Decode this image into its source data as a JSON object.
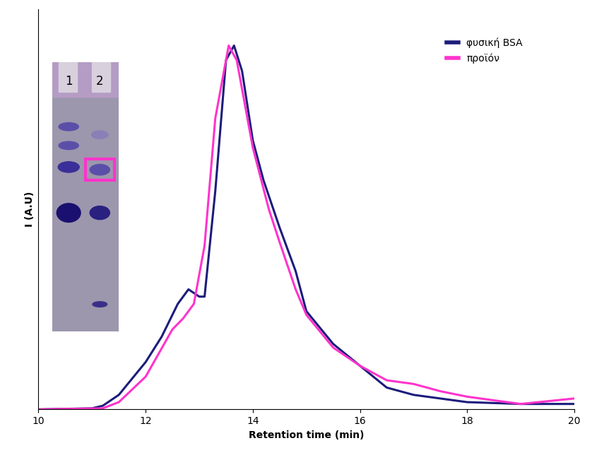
{
  "chart_data": {
    "type": "line",
    "x_label": "Retention time (min)",
    "y_label": "I (A.U)",
    "annotations": [
      "1",
      "2"
    ],
    "series": [
      {
        "name": "φυσική BSA",
        "color": "#1c1c7c",
        "x": [
          10,
          11,
          11.2,
          11.5,
          12,
          12.3,
          12.6,
          12.8,
          13.0,
          13.1,
          13.3,
          13.5,
          13.65,
          13.8,
          14.0,
          14.2,
          14.5,
          14.8,
          15.0,
          15.5,
          16,
          16.5,
          17,
          18,
          19,
          20
        ],
        "values": [
          0,
          0.3,
          1,
          4,
          13,
          20,
          29,
          33,
          31,
          31,
          60,
          96,
          100,
          93,
          74,
          63,
          50,
          38,
          27,
          18,
          12,
          6,
          4,
          2,
          1.5,
          1.5
        ]
      },
      {
        "name": "προϊόν",
        "color": "#ff33cc",
        "x": [
          10,
          11.2,
          11.5,
          12,
          12.5,
          12.7,
          12.9,
          13.1,
          13.3,
          13.55,
          13.7,
          14.0,
          14.3,
          14.5,
          14.8,
          15.0,
          15.5,
          16,
          16.5,
          17,
          17.5,
          18,
          19,
          20
        ],
        "values": [
          0,
          0.3,
          2,
          9,
          22,
          25,
          29,
          45,
          80,
          100,
          96,
          72,
          55,
          46,
          33,
          26,
          17,
          12,
          8,
          7,
          5,
          3.5,
          1.5,
          3
        ]
      }
    ],
    "xlim": [
      10,
      20
    ],
    "xticks": [
      10,
      12,
      14,
      16,
      18,
      20
    ],
    "ylim": [
      0,
      110
    ],
    "yticks": [],
    "tick_labels": "x",
    "legend": "upper right"
  }
}
